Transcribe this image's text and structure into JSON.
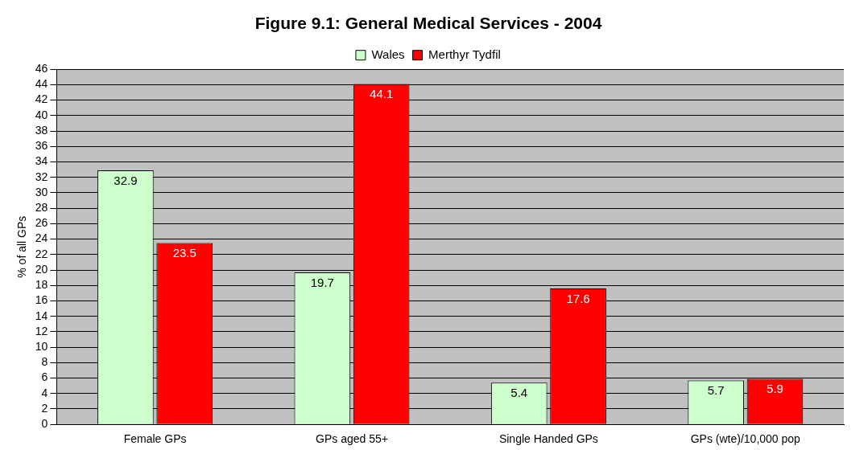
{
  "chart_data": {
    "type": "bar",
    "title": "Figure 9.1: General Medical Services - 2004",
    "ylabel": "% of all GPs",
    "categories": [
      "Female GPs",
      "GPs aged 55+",
      "Single Handed GPs",
      "GPs (wte)/10,000 pop"
    ],
    "series": [
      {
        "name": "Wales",
        "color": "#ccffcc",
        "values": [
          32.9,
          19.7,
          5.4,
          5.7
        ]
      },
      {
        "name": "Merthyr Tydfil",
        "color": "#ff0000",
        "values": [
          23.5,
          44.1,
          17.6,
          5.9
        ]
      }
    ],
    "ylim": [
      0,
      46
    ],
    "yticks": [
      0,
      2,
      4,
      6,
      8,
      10,
      12,
      14,
      16,
      18,
      20,
      22,
      24,
      26,
      28,
      30,
      32,
      34,
      36,
      38,
      40,
      42,
      44,
      46
    ],
    "grid": "y",
    "legend": "top",
    "data_labels": true
  }
}
